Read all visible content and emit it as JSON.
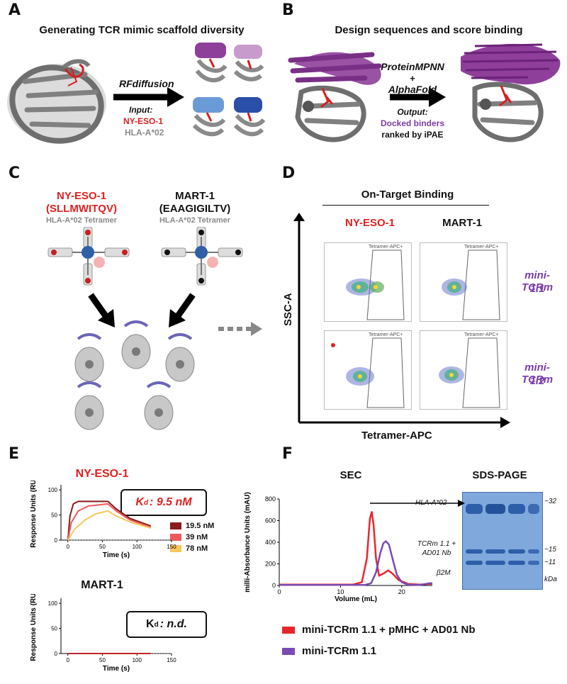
{
  "panels": {
    "A": {
      "label": "A",
      "title": "Generating TCR mimic scaffold diversity",
      "method": "RFdiffusion",
      "input_label": "Input:",
      "input_peptide": "NY-ESO-1",
      "input_hla": "HLA-A*02"
    },
    "B": {
      "label": "B",
      "title": "Design sequences and score binding",
      "method_line1": "ProteinMPNN",
      "method_plus": "+",
      "method_line2": "AlphaFold",
      "output_label": "Output:",
      "output_binders": "Docked binders",
      "output_rank": "ranked by iPAE"
    },
    "C": {
      "label": "C",
      "left_name": "NY-ESO-1",
      "left_seq": "(SLLMWITQV)",
      "left_tetramer": "HLA-A*02 Tetramer",
      "right_name": "MART-1",
      "right_seq": "(EAAGIGILTV)",
      "right_tetramer": "HLA-A*02 Tetramer"
    },
    "D": {
      "label": "D",
      "header": "On-Target Binding",
      "col1": "NY-ESO-1",
      "col2": "MART-1",
      "row1_line1": "mini-TCRm",
      "row1_line2": "1.1",
      "row2_line1": "mini-TCRm",
      "row2_line2": "1.2",
      "gate_label": "Tetramer-APC+",
      "y_axis": "SSC-A",
      "x_axis": "Tetramer-APC"
    },
    "E": {
      "label": "E",
      "legend": [
        "19.5 nM",
        "39 nM",
        "78 nM"
      ],
      "colors": {
        "c1": "#8b1a1a",
        "c2": "#ee5a5a",
        "c3": "#f7c65c",
        "mart": "#c0262e"
      }
    },
    "F": {
      "label": "F",
      "sec_title": "SEC",
      "sds_title": "SDS-PAGE",
      "band_hla": "HLA-A*02",
      "band_tcr_1": "TCRm 1.1 +",
      "band_tcr_2": "AD01 Nb",
      "band_b2m": "β2M",
      "mw_32": "~32",
      "mw_15": "~15",
      "mw_11": "~11",
      "mw_unit": "kDa",
      "legend1": "mini-TCRm 1.1 + pMHC + AD01 Nb",
      "legend2": "mini-TCRm 1.1",
      "colors": {
        "red": "#e8262a",
        "purple": "#7a4bb3",
        "gel": "#7fa8dc",
        "band": "#2d5ea8"
      }
    }
  },
  "chart_data": [
    {
      "type": "line",
      "title": "NY-ESO-1",
      "xlabel": "Time (s)",
      "ylabel": "Response Units (RU)",
      "xlim": [
        -10,
        150
      ],
      "ylim": [
        0,
        110
      ],
      "xticks": [
        0,
        50,
        100,
        150
      ],
      "yticks": [
        0,
        50,
        100
      ],
      "annotation": {
        "kd_prefix": "K",
        "kd_sub": "d",
        "kd_value": ": 9.5 nM"
      },
      "series": [
        {
          "name": "19.5 nM",
          "x": [
            0,
            3,
            8,
            15,
            58,
            70,
            90,
            120
          ],
          "y": [
            0,
            48,
            72,
            77,
            77,
            62,
            43,
            28
          ]
        },
        {
          "name": "39 nM",
          "x": [
            0,
            5,
            15,
            30,
            58,
            70,
            90,
            120
          ],
          "y": [
            0,
            35,
            58,
            68,
            72,
            58,
            40,
            26
          ]
        },
        {
          "name": "78 nM",
          "x": [
            0,
            10,
            25,
            40,
            58,
            70,
            90,
            120
          ],
          "y": [
            0,
            22,
            40,
            52,
            58,
            48,
            36,
            24
          ]
        }
      ]
    },
    {
      "type": "line",
      "title": "MART-1",
      "xlabel": "Time (s)",
      "ylabel": "Response Units (RU)",
      "xlim": [
        -10,
        150
      ],
      "ylim": [
        0,
        110
      ],
      "xticks": [
        0,
        50,
        100,
        150
      ],
      "yticks": [
        0,
        50,
        100
      ],
      "annotation": {
        "kd_prefix": "K",
        "kd_sub": "d",
        "kd_value": ": n.d."
      },
      "series": [
        {
          "name": "MART-1",
          "x": [
            0,
            120
          ],
          "y": [
            0,
            0
          ]
        }
      ]
    },
    {
      "type": "line",
      "title": "SEC",
      "xlabel": "Volume (mL)",
      "ylabel": "milli-Absorbance Units (mAU)",
      "xlim": [
        0,
        25
      ],
      "ylim": [
        0,
        800
      ],
      "xticks": [
        0,
        10,
        20
      ],
      "yticks": [
        0,
        200,
        400,
        600,
        800
      ],
      "series": [
        {
          "name": "mini-TCRm 1.1 + pMHC + AD01 Nb",
          "x": [
            0,
            12,
            13.5,
            14.3,
            14.8,
            15.1,
            15.4,
            15.8,
            16.3,
            17,
            17.8,
            18.5,
            19.5,
            21,
            23,
            24.5,
            25
          ],
          "y": [
            8,
            8,
            30,
            250,
            620,
            680,
            560,
            250,
            90,
            110,
            140,
            110,
            50,
            15,
            8,
            15,
            15
          ]
        },
        {
          "name": "mini-TCRm 1.1",
          "x": [
            0,
            14,
            15,
            15.8,
            16.5,
            17,
            17.4,
            17.9,
            18.5,
            19.2,
            20,
            21,
            23,
            24.5,
            25
          ],
          "y": [
            5,
            5,
            20,
            120,
            300,
            390,
            410,
            380,
            250,
            100,
            30,
            8,
            5,
            20,
            20
          ]
        }
      ]
    }
  ]
}
